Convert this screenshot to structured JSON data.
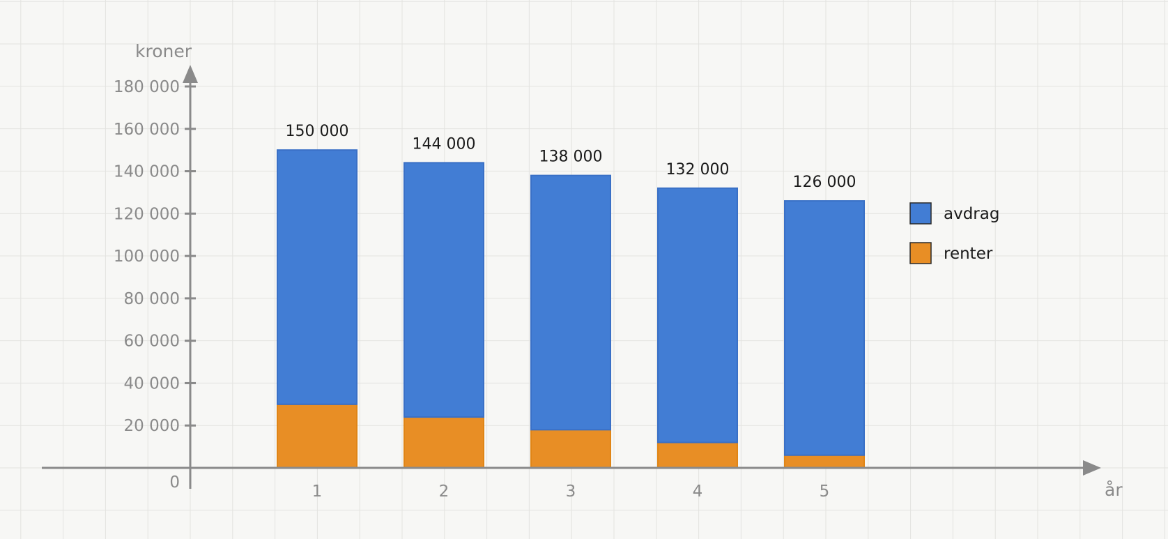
{
  "chart_data": {
    "type": "bar",
    "stacked": true,
    "categories": [
      "1",
      "2",
      "3",
      "4",
      "5"
    ],
    "series": [
      {
        "name": "renter",
        "color": "#e88e25",
        "values": [
          30000,
          24000,
          18000,
          12000,
          6000
        ]
      },
      {
        "name": "avdrag",
        "color": "#427dd4",
        "values": [
          120000,
          120000,
          120000,
          120000,
          120000
        ]
      }
    ],
    "totals": [
      150000,
      144000,
      138000,
      132000,
      126000
    ],
    "total_labels": [
      "150 000",
      "144 000",
      "138 000",
      "132 000",
      "126 000"
    ],
    "xlabel": "år",
    "ylabel": "kroner",
    "ylim": [
      0,
      180000
    ],
    "y_ticks": [
      0,
      20000,
      40000,
      60000,
      80000,
      100000,
      120000,
      140000,
      160000,
      180000
    ],
    "y_tick_labels": [
      "0",
      "20 000",
      "40 000",
      "60 000",
      "80 000",
      "100 000",
      "120 000",
      "140 000",
      "160 000",
      "180 000"
    ],
    "grid": true,
    "legend": {
      "position": "right",
      "items": [
        "avdrag",
        "renter"
      ]
    }
  }
}
